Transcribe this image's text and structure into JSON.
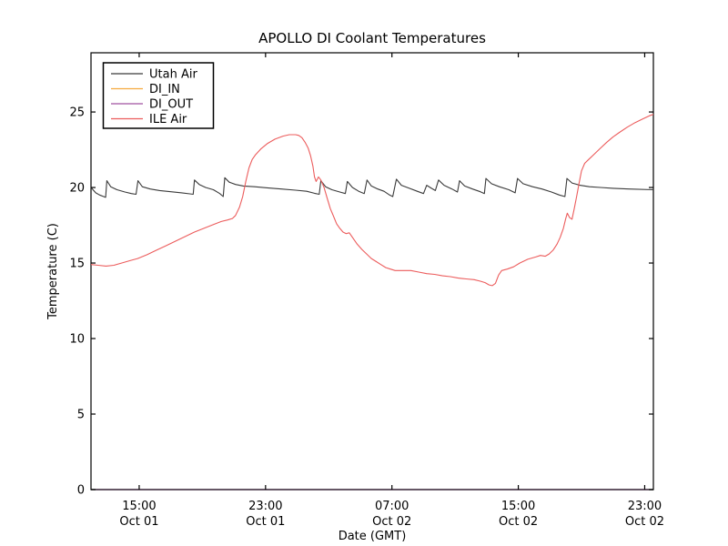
{
  "chart_data": {
    "type": "line",
    "title": "APOLLO DI Coolant Temperatures",
    "xlabel": "Date (GMT)",
    "ylabel": "Temperature (C)",
    "background_color": "#ffffff",
    "frame_color": "#000000",
    "grid": false,
    "legend_position": "upper left",
    "x_unit_note": "hours since Oct 01 00:00 GMT",
    "xlim": [
      11.95,
      47.55
    ],
    "ylim": [
      0,
      28.92
    ],
    "y_ticks": [
      0,
      5,
      10,
      15,
      20,
      25
    ],
    "x_ticks": [
      {
        "value": 15,
        "time": "15:00",
        "date": "Oct 01"
      },
      {
        "value": 23,
        "time": "23:00",
        "date": "Oct 01"
      },
      {
        "value": 31,
        "time": "07:00",
        "date": "Oct 02"
      },
      {
        "value": 39,
        "time": "15:00",
        "date": "Oct 02"
      },
      {
        "value": 47,
        "time": "23:00",
        "date": "Oct 02"
      }
    ],
    "series": [
      {
        "name": "Utah Air",
        "color": "#3a3a3a",
        "points": [
          [
            11.95,
            20.0
          ],
          [
            12.25,
            19.65
          ],
          [
            12.5,
            19.5
          ],
          [
            12.75,
            19.4
          ],
          [
            12.88,
            19.35
          ],
          [
            12.95,
            20.45
          ],
          [
            13.2,
            20.05
          ],
          [
            13.6,
            19.85
          ],
          [
            14.1,
            19.7
          ],
          [
            14.5,
            19.6
          ],
          [
            14.8,
            19.55
          ],
          [
            14.92,
            20.45
          ],
          [
            15.2,
            20.05
          ],
          [
            15.7,
            19.9
          ],
          [
            16.3,
            19.8
          ],
          [
            17.0,
            19.72
          ],
          [
            17.7,
            19.65
          ],
          [
            18.2,
            19.58
          ],
          [
            18.42,
            19.55
          ],
          [
            18.5,
            20.5
          ],
          [
            18.8,
            20.2
          ],
          [
            19.2,
            20.0
          ],
          [
            19.7,
            19.85
          ],
          [
            20.1,
            19.6
          ],
          [
            20.32,
            19.4
          ],
          [
            20.42,
            20.65
          ],
          [
            20.7,
            20.35
          ],
          [
            21.1,
            20.2
          ],
          [
            21.6,
            20.1
          ],
          [
            22.3,
            20.05
          ],
          [
            23.1,
            19.98
          ],
          [
            24.0,
            19.9
          ],
          [
            24.9,
            19.82
          ],
          [
            25.6,
            19.75
          ],
          [
            26.1,
            19.62
          ],
          [
            26.4,
            19.55
          ],
          [
            26.5,
            20.45
          ],
          [
            26.8,
            20.05
          ],
          [
            27.2,
            19.85
          ],
          [
            27.7,
            19.7
          ],
          [
            28.05,
            19.6
          ],
          [
            28.18,
            20.4
          ],
          [
            28.5,
            20.0
          ],
          [
            28.9,
            19.75
          ],
          [
            29.25,
            19.6
          ],
          [
            29.42,
            20.5
          ],
          [
            29.7,
            20.1
          ],
          [
            30.1,
            19.9
          ],
          [
            30.5,
            19.75
          ],
          [
            30.85,
            19.5
          ],
          [
            31.05,
            19.4
          ],
          [
            31.28,
            20.55
          ],
          [
            31.6,
            20.15
          ],
          [
            32.1,
            19.95
          ],
          [
            32.6,
            19.75
          ],
          [
            33.0,
            19.6
          ],
          [
            33.2,
            20.15
          ],
          [
            33.5,
            19.95
          ],
          [
            33.75,
            19.8
          ],
          [
            33.95,
            20.5
          ],
          [
            34.3,
            20.15
          ],
          [
            34.8,
            19.9
          ],
          [
            35.15,
            19.7
          ],
          [
            35.28,
            20.45
          ],
          [
            35.6,
            20.1
          ],
          [
            36.1,
            19.9
          ],
          [
            36.6,
            19.72
          ],
          [
            36.85,
            19.6
          ],
          [
            36.95,
            20.6
          ],
          [
            37.3,
            20.25
          ],
          [
            37.8,
            20.05
          ],
          [
            38.4,
            19.85
          ],
          [
            38.8,
            19.65
          ],
          [
            38.95,
            20.6
          ],
          [
            39.3,
            20.25
          ],
          [
            39.9,
            20.05
          ],
          [
            40.5,
            19.9
          ],
          [
            41.1,
            19.7
          ],
          [
            41.6,
            19.5
          ],
          [
            41.95,
            19.4
          ],
          [
            42.08,
            20.6
          ],
          [
            42.4,
            20.3
          ],
          [
            42.9,
            20.15
          ],
          [
            43.5,
            20.05
          ],
          [
            44.2,
            20.0
          ],
          [
            45.0,
            19.95
          ],
          [
            46.0,
            19.9
          ],
          [
            47.55,
            19.85
          ]
        ]
      },
      {
        "name": "DI_IN",
        "color": "#f5a93f",
        "points": [
          [
            11.95,
            0
          ],
          [
            47.55,
            0
          ]
        ]
      },
      {
        "name": "DI_OUT",
        "color": "#a050a0",
        "points": [
          [
            11.95,
            0
          ],
          [
            47.55,
            0
          ]
        ]
      },
      {
        "name": "ILE Air",
        "color": "#ec5c5c",
        "points": [
          [
            11.95,
            14.9
          ],
          [
            12.4,
            14.85
          ],
          [
            12.9,
            14.8
          ],
          [
            13.4,
            14.85
          ],
          [
            13.9,
            15.0
          ],
          [
            14.4,
            15.15
          ],
          [
            14.9,
            15.3
          ],
          [
            15.5,
            15.55
          ],
          [
            16.1,
            15.85
          ],
          [
            16.7,
            16.15
          ],
          [
            17.3,
            16.45
          ],
          [
            17.9,
            16.75
          ],
          [
            18.5,
            17.05
          ],
          [
            19.1,
            17.3
          ],
          [
            19.7,
            17.55
          ],
          [
            20.2,
            17.75
          ],
          [
            20.6,
            17.85
          ],
          [
            20.9,
            17.95
          ],
          [
            21.1,
            18.15
          ],
          [
            21.35,
            18.7
          ],
          [
            21.55,
            19.4
          ],
          [
            21.75,
            20.4
          ],
          [
            21.95,
            21.3
          ],
          [
            22.15,
            21.85
          ],
          [
            22.35,
            22.15
          ],
          [
            22.7,
            22.55
          ],
          [
            23.1,
            22.9
          ],
          [
            23.6,
            23.2
          ],
          [
            24.1,
            23.4
          ],
          [
            24.5,
            23.5
          ],
          [
            24.9,
            23.5
          ],
          [
            25.1,
            23.45
          ],
          [
            25.3,
            23.3
          ],
          [
            25.5,
            23.0
          ],
          [
            25.7,
            22.6
          ],
          [
            25.85,
            22.1
          ],
          [
            26.0,
            21.4
          ],
          [
            26.1,
            20.7
          ],
          [
            26.2,
            20.4
          ],
          [
            26.35,
            20.7
          ],
          [
            26.5,
            20.5
          ],
          [
            26.7,
            20.0
          ],
          [
            26.9,
            19.3
          ],
          [
            27.1,
            18.6
          ],
          [
            27.3,
            18.1
          ],
          [
            27.5,
            17.6
          ],
          [
            27.7,
            17.3
          ],
          [
            27.9,
            17.05
          ],
          [
            28.1,
            16.95
          ],
          [
            28.3,
            17.0
          ],
          [
            28.5,
            16.7
          ],
          [
            28.8,
            16.25
          ],
          [
            29.1,
            15.9
          ],
          [
            29.4,
            15.6
          ],
          [
            29.7,
            15.3
          ],
          [
            30.0,
            15.1
          ],
          [
            30.3,
            14.9
          ],
          [
            30.6,
            14.7
          ],
          [
            30.9,
            14.6
          ],
          [
            31.2,
            14.5
          ],
          [
            31.7,
            14.5
          ],
          [
            32.2,
            14.5
          ],
          [
            32.7,
            14.4
          ],
          [
            33.2,
            14.3
          ],
          [
            33.7,
            14.25
          ],
          [
            34.2,
            14.15
          ],
          [
            34.7,
            14.1
          ],
          [
            35.2,
            14.0
          ],
          [
            35.7,
            13.95
          ],
          [
            36.2,
            13.9
          ],
          [
            36.6,
            13.8
          ],
          [
            36.9,
            13.7
          ],
          [
            37.15,
            13.55
          ],
          [
            37.35,
            13.5
          ],
          [
            37.55,
            13.65
          ],
          [
            37.75,
            14.2
          ],
          [
            37.95,
            14.5
          ],
          [
            38.3,
            14.6
          ],
          [
            38.7,
            14.75
          ],
          [
            39.1,
            15.0
          ],
          [
            39.6,
            15.25
          ],
          [
            40.1,
            15.4
          ],
          [
            40.4,
            15.5
          ],
          [
            40.7,
            15.45
          ],
          [
            40.95,
            15.6
          ],
          [
            41.2,
            15.85
          ],
          [
            41.45,
            16.25
          ],
          [
            41.65,
            16.7
          ],
          [
            41.85,
            17.3
          ],
          [
            42.0,
            17.95
          ],
          [
            42.1,
            18.3
          ],
          [
            42.25,
            18.0
          ],
          [
            42.4,
            17.9
          ],
          [
            42.55,
            18.65
          ],
          [
            42.7,
            19.45
          ],
          [
            42.85,
            20.3
          ],
          [
            43.0,
            21.1
          ],
          [
            43.2,
            21.6
          ],
          [
            43.45,
            21.85
          ],
          [
            43.8,
            22.2
          ],
          [
            44.2,
            22.6
          ],
          [
            44.6,
            23.0
          ],
          [
            45.0,
            23.35
          ],
          [
            45.4,
            23.65
          ],
          [
            45.9,
            24.0
          ],
          [
            46.4,
            24.3
          ],
          [
            46.9,
            24.55
          ],
          [
            47.3,
            24.75
          ],
          [
            47.55,
            24.85
          ]
        ]
      }
    ]
  }
}
